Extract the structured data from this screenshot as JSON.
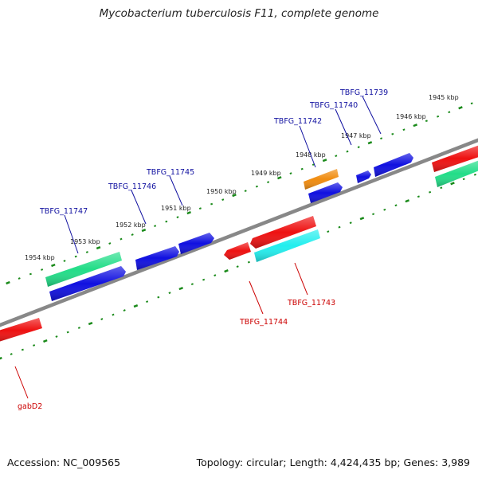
{
  "title": "Mycobacterium tuberculosis F11, complete genome",
  "footer": {
    "accession": "Accession: NC_009565",
    "summary": "Topology: circular; Length: 4,424,435 bp; Genes: 3,989"
  },
  "colors": {
    "backbone": "#808080",
    "tick": "#1a8a1a",
    "forward_label": "#1010a0",
    "reverse_label": "#cc0000",
    "blue_gene": "#1010e0",
    "red_gene": "#ee1111",
    "green_gene": "#22dd88",
    "cyan_gene": "#22eeee",
    "orange_gene": "#f08c10"
  },
  "scale_labels": [
    "1945 kbp",
    "1946 kbp",
    "1947 kbp",
    "1948 kbp",
    "1949 kbp",
    "1950 kbp",
    "1951 kbp",
    "1952 kbp",
    "1953 kbp",
    "1954 kbp"
  ],
  "labeled_genes": [
    {
      "name": "TBFG_11739",
      "strand": "forward"
    },
    {
      "name": "TBFG_11740",
      "strand": "forward"
    },
    {
      "name": "TBFG_11742",
      "strand": "forward"
    },
    {
      "name": "TBFG_11745",
      "strand": "forward"
    },
    {
      "name": "TBFG_11746",
      "strand": "forward"
    },
    {
      "name": "TBFG_11747",
      "strand": "forward"
    },
    {
      "name": "TBFG_11743",
      "strand": "reverse"
    },
    {
      "name": "TBFG_11744",
      "strand": "reverse"
    },
    {
      "name": "gabD2",
      "strand": "reverse"
    }
  ],
  "features": [
    {
      "color": "blue_gene",
      "type": "forward-arrow"
    },
    {
      "color": "blue_gene",
      "type": "forward-arrow"
    },
    {
      "color": "blue_gene",
      "type": "forward-arrow"
    },
    {
      "color": "blue_gene",
      "type": "forward-arrow"
    },
    {
      "color": "blue_gene",
      "type": "forward-arrow"
    },
    {
      "color": "blue_gene",
      "type": "forward-arrow"
    },
    {
      "color": "orange_gene",
      "type": "forward-box"
    },
    {
      "color": "green_gene",
      "type": "forward-box"
    },
    {
      "color": "green_gene",
      "type": "forward-box"
    },
    {
      "color": "red_gene",
      "type": "forward-box"
    },
    {
      "color": "red_gene",
      "type": "reverse-arrow"
    },
    {
      "color": "red_gene",
      "type": "reverse-arrow"
    },
    {
      "color": "red_gene",
      "type": "reverse-arrow"
    },
    {
      "color": "cyan_gene",
      "type": "reverse-box"
    }
  ]
}
